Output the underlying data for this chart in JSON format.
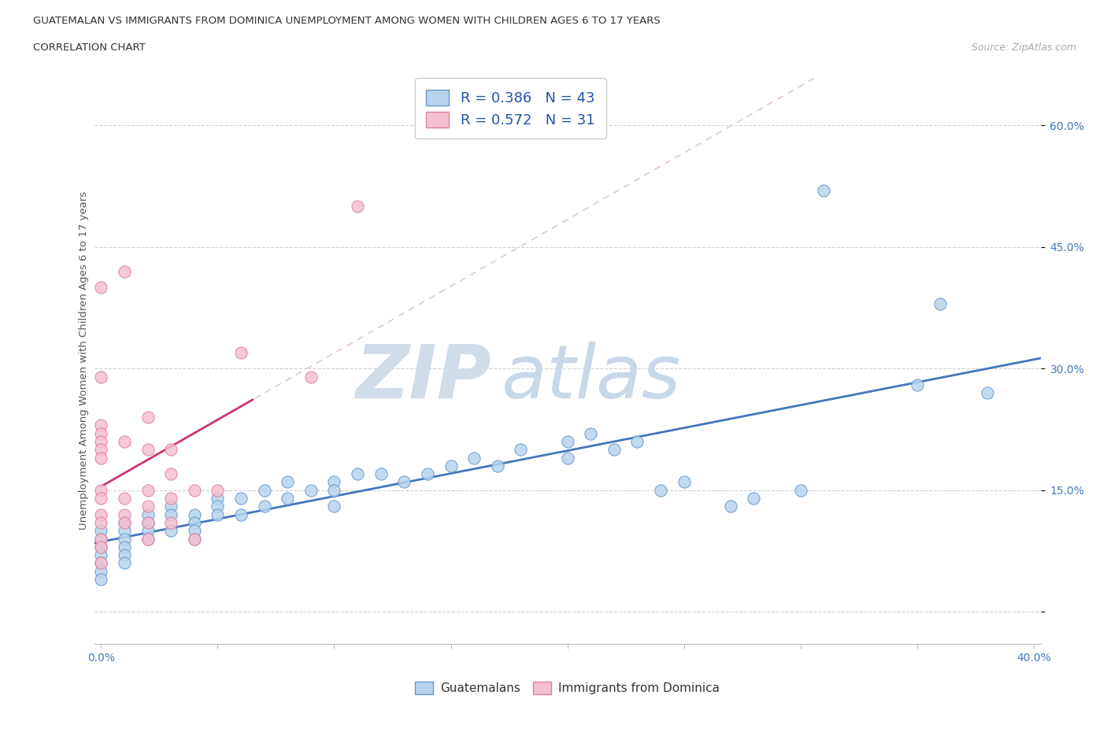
{
  "title_line1": "GUATEMALAN VS IMMIGRANTS FROM DOMINICA UNEMPLOYMENT AMONG WOMEN WITH CHILDREN AGES 6 TO 17 YEARS",
  "title_line2": "CORRELATION CHART",
  "source": "Source: ZipAtlas.com",
  "ylabel": "Unemployment Among Women with Children Ages 6 to 17 years",
  "xlim": [
    -0.003,
    0.403
  ],
  "ylim": [
    -0.04,
    0.66
  ],
  "ytick_positions": [
    0.0,
    0.15,
    0.3,
    0.45,
    0.6
  ],
  "xtick_positions": [
    0.0,
    0.05,
    0.1,
    0.15,
    0.2,
    0.25,
    0.3,
    0.35,
    0.4
  ],
  "blue_R": 0.386,
  "blue_N": 43,
  "pink_R": 0.572,
  "pink_N": 31,
  "blue_face": "#b8d4ee",
  "blue_edge": "#6699cc",
  "pink_face": "#f4c0d0",
  "pink_edge": "#e080a0",
  "blue_line": "#4477bb",
  "pink_line": "#cc3377",
  "diag_color": "#ddbbcc",
  "watermark_zip": "ZIP",
  "watermark_atlas": "atlas",
  "blue_x": [
    0.0,
    0.0,
    0.0,
    0.0,
    0.0,
    0.0,
    0.0,
    0.01,
    0.01,
    0.01,
    0.01,
    0.01,
    0.01,
    0.02,
    0.02,
    0.02,
    0.02,
    0.03,
    0.03,
    0.03,
    0.04,
    0.04,
    0.04,
    0.04,
    0.05,
    0.05,
    0.05,
    0.06,
    0.06,
    0.07,
    0.07,
    0.08,
    0.08,
    0.09,
    0.1,
    0.1,
    0.1,
    0.11,
    0.12,
    0.13,
    0.14,
    0.15,
    0.16,
    0.17,
    0.18,
    0.2,
    0.2,
    0.21,
    0.22,
    0.23,
    0.24,
    0.25,
    0.27,
    0.28,
    0.3,
    0.31,
    0.35,
    0.36,
    0.38
  ],
  "blue_y": [
    0.1,
    0.09,
    0.08,
    0.07,
    0.06,
    0.05,
    0.04,
    0.11,
    0.1,
    0.09,
    0.08,
    0.07,
    0.06,
    0.12,
    0.11,
    0.1,
    0.09,
    0.13,
    0.12,
    0.1,
    0.12,
    0.11,
    0.1,
    0.09,
    0.14,
    0.13,
    0.12,
    0.14,
    0.12,
    0.15,
    0.13,
    0.16,
    0.14,
    0.15,
    0.16,
    0.15,
    0.13,
    0.17,
    0.17,
    0.16,
    0.17,
    0.18,
    0.19,
    0.18,
    0.2,
    0.21,
    0.19,
    0.22,
    0.2,
    0.21,
    0.15,
    0.16,
    0.13,
    0.14,
    0.15,
    0.52,
    0.28,
    0.38,
    0.27
  ],
  "pink_x": [
    0.0,
    0.0,
    0.0,
    0.0,
    0.0,
    0.0,
    0.0,
    0.0,
    0.0,
    0.0,
    0.0,
    0.0,
    0.0,
    0.0,
    0.01,
    0.01,
    0.01,
    0.01,
    0.01,
    0.02,
    0.02,
    0.02,
    0.02,
    0.02,
    0.02,
    0.03,
    0.03,
    0.03,
    0.03,
    0.04,
    0.04,
    0.05,
    0.06,
    0.09,
    0.11
  ],
  "pink_y": [
    0.4,
    0.29,
    0.23,
    0.22,
    0.21,
    0.2,
    0.19,
    0.15,
    0.14,
    0.12,
    0.11,
    0.09,
    0.08,
    0.06,
    0.42,
    0.21,
    0.14,
    0.12,
    0.11,
    0.24,
    0.2,
    0.15,
    0.13,
    0.11,
    0.09,
    0.2,
    0.17,
    0.14,
    0.11,
    0.15,
    0.09,
    0.15,
    0.32,
    0.29,
    0.5
  ]
}
